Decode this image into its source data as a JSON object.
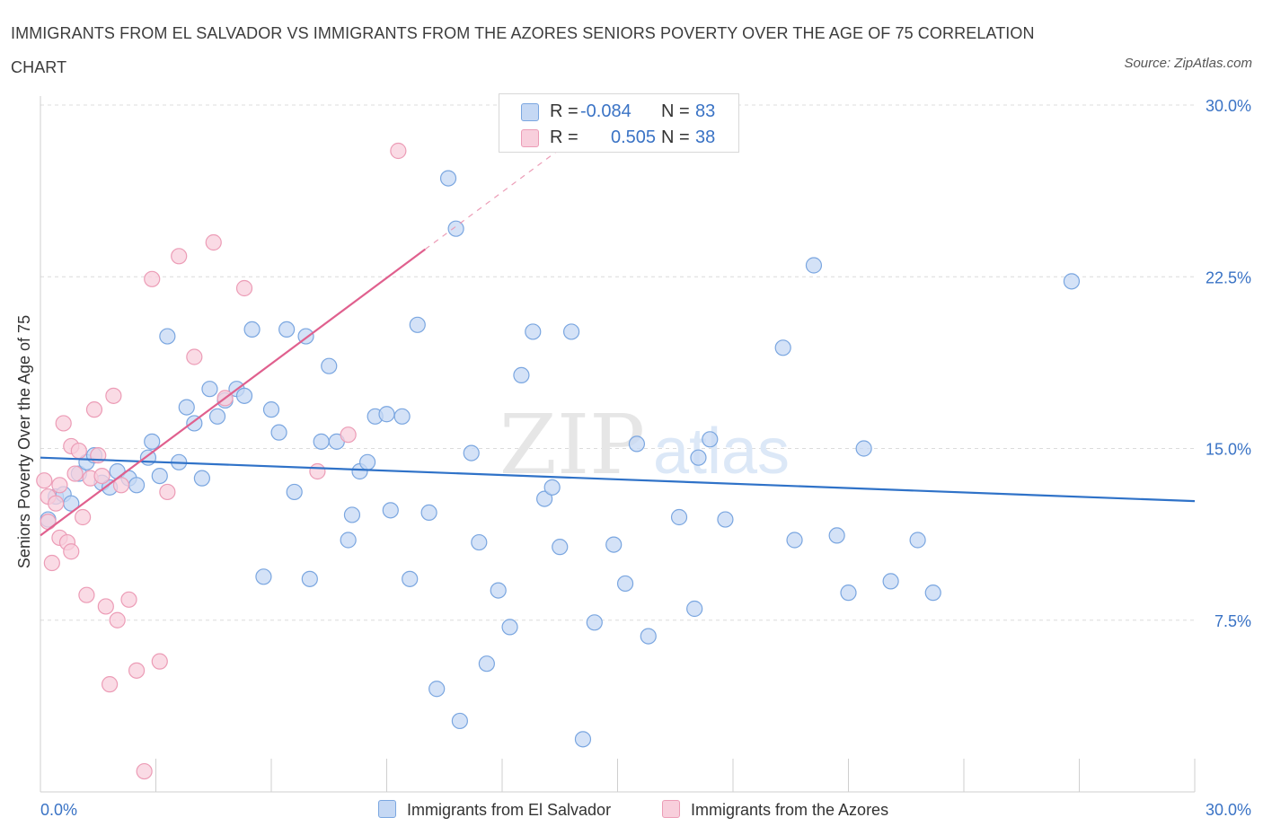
{
  "title": "IMMIGRANTS FROM EL SALVADOR VS IMMIGRANTS FROM THE AZORES SENIORS POVERTY OVER THE AGE OF 75 CORRELATION CHART",
  "source": "Source: ZipAtlas.com",
  "watermark": {
    "zip": "ZIP",
    "atlas": "atlas"
  },
  "colors": {
    "blue_fill": "#c5d8f4",
    "blue_stroke": "#7aa6e0",
    "blue_line": "#2f72c8",
    "pink_fill": "#f8cfdc",
    "pink_stroke": "#ec9cb6",
    "pink_line": "#e0608e",
    "value_text": "#3a73c5",
    "grid": "#dcdcdc"
  },
  "legend": {
    "r_label": "R =",
    "n_label": "N =",
    "series": [
      {
        "name": "Immigrants from El Salvador",
        "r": "-0.084",
        "n": "83"
      },
      {
        "name": "Immigrants from the Azores",
        "r": "0.505",
        "n": "38"
      }
    ]
  },
  "chart_data": {
    "type": "scatter",
    "title": "IMMIGRANTS FROM EL SALVADOR VS IMMIGRANTS FROM THE AZORES SENIORS POVERTY OVER THE AGE OF 75 CORRELATION CHART",
    "xlabel": "",
    "ylabel": "Seniors Poverty Over the Age of 75",
    "xlim": [
      0,
      30
    ],
    "ylim": [
      0,
      30
    ],
    "x_tick_labels": [
      "0.0%",
      "30.0%"
    ],
    "y_ticks": [
      7.5,
      15,
      22.5,
      30
    ],
    "y_tick_labels": [
      "7.5%",
      "15.0%",
      "22.5%",
      "30.0%"
    ],
    "grid": true,
    "legend_position": "top-center",
    "series": [
      {
        "name": "Immigrants from El Salvador",
        "r": -0.084,
        "n": 83,
        "trend": {
          "x": [
            0,
            30
          ],
          "y": [
            14.6,
            12.7
          ],
          "dashed_from": null
        },
        "points": [
          [
            0.2,
            11.9
          ],
          [
            0.4,
            12.9
          ],
          [
            0.6,
            13.0
          ],
          [
            0.8,
            12.6
          ],
          [
            1.0,
            13.9
          ],
          [
            1.2,
            14.4
          ],
          [
            1.4,
            14.7
          ],
          [
            1.6,
            13.5
          ],
          [
            1.8,
            13.3
          ],
          [
            2.0,
            14.0
          ],
          [
            2.3,
            13.7
          ],
          [
            2.5,
            13.4
          ],
          [
            2.8,
            14.6
          ],
          [
            2.9,
            15.3
          ],
          [
            3.1,
            13.8
          ],
          [
            3.3,
            19.9
          ],
          [
            3.6,
            14.4
          ],
          [
            3.8,
            16.8
          ],
          [
            4.0,
            16.1
          ],
          [
            4.2,
            13.7
          ],
          [
            4.4,
            17.6
          ],
          [
            4.6,
            16.4
          ],
          [
            4.8,
            17.1
          ],
          [
            5.1,
            17.6
          ],
          [
            5.3,
            17.3
          ],
          [
            5.5,
            20.2
          ],
          [
            5.8,
            9.4
          ],
          [
            6.0,
            16.7
          ],
          [
            6.2,
            15.7
          ],
          [
            6.4,
            20.2
          ],
          [
            6.6,
            13.1
          ],
          [
            6.9,
            19.9
          ],
          [
            7.0,
            9.3
          ],
          [
            7.3,
            15.3
          ],
          [
            7.5,
            18.6
          ],
          [
            7.7,
            15.3
          ],
          [
            8.0,
            11.0
          ],
          [
            8.1,
            12.1
          ],
          [
            8.3,
            14.0
          ],
          [
            8.5,
            14.4
          ],
          [
            8.7,
            16.4
          ],
          [
            9.0,
            16.5
          ],
          [
            9.1,
            12.3
          ],
          [
            9.4,
            16.4
          ],
          [
            9.6,
            9.3
          ],
          [
            9.8,
            20.4
          ],
          [
            10.1,
            12.2
          ],
          [
            10.3,
            4.5
          ],
          [
            10.6,
            26.8
          ],
          [
            10.8,
            24.6
          ],
          [
            10.9,
            3.1
          ],
          [
            11.2,
            14.8
          ],
          [
            11.4,
            10.9
          ],
          [
            11.6,
            5.6
          ],
          [
            11.9,
            8.8
          ],
          [
            12.2,
            7.2
          ],
          [
            12.5,
            18.2
          ],
          [
            12.8,
            20.1
          ],
          [
            13.1,
            12.8
          ],
          [
            13.3,
            13.3
          ],
          [
            13.5,
            10.7
          ],
          [
            13.8,
            20.1
          ],
          [
            14.1,
            2.3
          ],
          [
            14.4,
            7.4
          ],
          [
            14.9,
            10.8
          ],
          [
            15.2,
            9.1
          ],
          [
            15.5,
            15.2
          ],
          [
            15.8,
            6.8
          ],
          [
            16.6,
            12.0
          ],
          [
            17.0,
            8.0
          ],
          [
            17.1,
            14.6
          ],
          [
            17.4,
            15.4
          ],
          [
            17.8,
            11.9
          ],
          [
            19.3,
            19.4
          ],
          [
            19.6,
            11.0
          ],
          [
            20.1,
            23.0
          ],
          [
            20.7,
            11.2
          ],
          [
            21.0,
            8.7
          ],
          [
            21.4,
            15.0
          ],
          [
            22.1,
            9.2
          ],
          [
            22.8,
            11.0
          ],
          [
            23.2,
            8.7
          ],
          [
            26.8,
            22.3
          ]
        ]
      },
      {
        "name": "Immigrants from the Azores",
        "r": 0.505,
        "n": 38,
        "trend": {
          "x": [
            0,
            10.0
          ],
          "y": [
            11.2,
            23.7
          ],
          "dashed_to": [
            14.0,
            28.7
          ]
        },
        "points": [
          [
            0.1,
            13.6
          ],
          [
            0.2,
            12.9
          ],
          [
            0.2,
            11.8
          ],
          [
            0.3,
            10.0
          ],
          [
            0.4,
            12.6
          ],
          [
            0.5,
            13.4
          ],
          [
            0.5,
            11.1
          ],
          [
            0.6,
            16.1
          ],
          [
            0.7,
            10.9
          ],
          [
            0.8,
            10.5
          ],
          [
            0.8,
            15.1
          ],
          [
            0.9,
            13.9
          ],
          [
            1.0,
            14.9
          ],
          [
            1.1,
            12.0
          ],
          [
            1.2,
            8.6
          ],
          [
            1.3,
            13.7
          ],
          [
            1.4,
            16.7
          ],
          [
            1.6,
            13.8
          ],
          [
            1.7,
            8.1
          ],
          [
            1.8,
            4.7
          ],
          [
            1.9,
            17.3
          ],
          [
            2.0,
            7.5
          ],
          [
            2.1,
            13.4
          ],
          [
            2.3,
            8.4
          ],
          [
            2.5,
            5.3
          ],
          [
            2.7,
            0.9
          ],
          [
            2.9,
            22.4
          ],
          [
            3.1,
            5.7
          ],
          [
            3.3,
            13.1
          ],
          [
            3.6,
            23.4
          ],
          [
            4.0,
            19.0
          ],
          [
            4.5,
            24.0
          ],
          [
            4.8,
            17.2
          ],
          [
            5.3,
            22.0
          ],
          [
            7.2,
            14.0
          ],
          [
            8.0,
            15.6
          ],
          [
            9.3,
            28.0
          ],
          [
            1.5,
            14.7
          ]
        ]
      }
    ]
  }
}
